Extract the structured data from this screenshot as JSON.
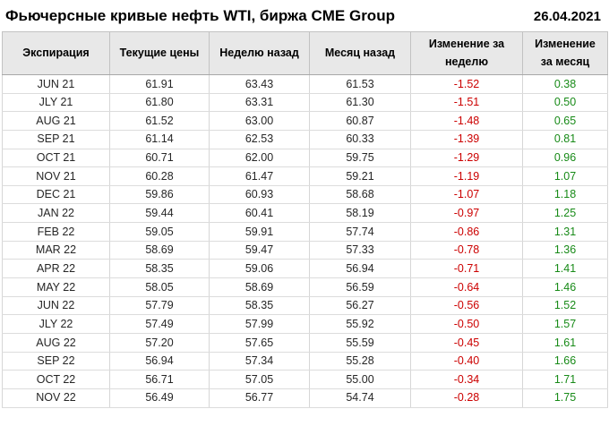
{
  "title": "Фьючерсные кривые нефть WTI, биржа CME Group",
  "date": "26.04.2021",
  "colors": {
    "negative": "#cc0000",
    "positive": "#178a17",
    "header_bg": "#e8e8e8"
  },
  "chart_data": {
    "type": "table",
    "title": "Фьючерсные кривые нефть WTI, биржа CME Group",
    "date": "26.04.2021",
    "columns": [
      "Экспирация",
      "Текущие цены",
      "Неделю назад",
      "Месяц назад",
      "Изменение за неделю",
      "Изменение за месяц"
    ],
    "rows": [
      [
        "JUN 21",
        "61.91",
        "63.43",
        "61.53",
        "-1.52",
        "0.38"
      ],
      [
        "JLY 21",
        "61.80",
        "63.31",
        "61.30",
        "-1.51",
        "0.50"
      ],
      [
        "AUG 21",
        "61.52",
        "63.00",
        "60.87",
        "-1.48",
        "0.65"
      ],
      [
        "SEP 21",
        "61.14",
        "62.53",
        "60.33",
        "-1.39",
        "0.81"
      ],
      [
        "OCT 21",
        "60.71",
        "62.00",
        "59.75",
        "-1.29",
        "0.96"
      ],
      [
        "NOV 21",
        "60.28",
        "61.47",
        "59.21",
        "-1.19",
        "1.07"
      ],
      [
        "DEC 21",
        "59.86",
        "60.93",
        "58.68",
        "-1.07",
        "1.18"
      ],
      [
        "JAN 22",
        "59.44",
        "60.41",
        "58.19",
        "-0.97",
        "1.25"
      ],
      [
        "FEB 22",
        "59.05",
        "59.91",
        "57.74",
        "-0.86",
        "1.31"
      ],
      [
        "MAR 22",
        "58.69",
        "59.47",
        "57.33",
        "-0.78",
        "1.36"
      ],
      [
        "APR 22",
        "58.35",
        "59.06",
        "56.94",
        "-0.71",
        "1.41"
      ],
      [
        "MAY 22",
        "58.05",
        "58.69",
        "56.59",
        "-0.64",
        "1.46"
      ],
      [
        "JUN 22",
        "57.79",
        "58.35",
        "56.27",
        "-0.56",
        "1.52"
      ],
      [
        "JLY 22",
        "57.49",
        "57.99",
        "55.92",
        "-0.50",
        "1.57"
      ],
      [
        "AUG 22",
        "57.20",
        "57.65",
        "55.59",
        "-0.45",
        "1.61"
      ],
      [
        "SEP 22",
        "56.94",
        "57.34",
        "55.28",
        "-0.40",
        "1.66"
      ],
      [
        "OCT 22",
        "56.71",
        "57.05",
        "55.00",
        "-0.34",
        "1.71"
      ],
      [
        "NOV 22",
        "56.49",
        "56.77",
        "54.74",
        "-0.28",
        "1.75"
      ]
    ]
  }
}
